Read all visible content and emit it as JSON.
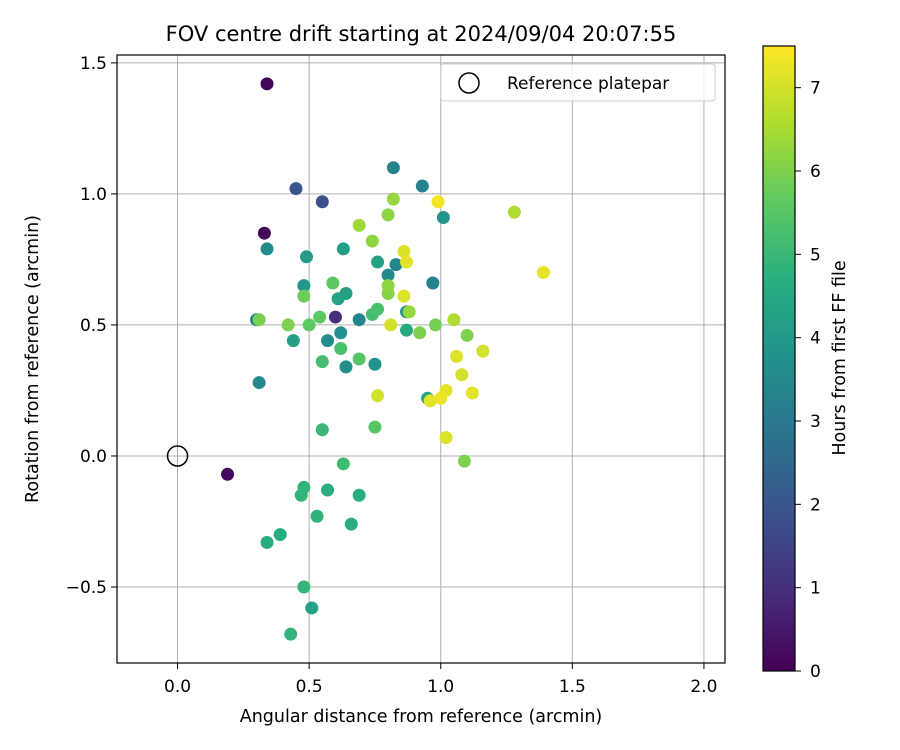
{
  "chart_data": {
    "type": "scatter",
    "title": "FOV centre drift starting at 2024/09/04 20:07:55",
    "xlabel": "Angular distance from reference (arcmin)",
    "ylabel": "Rotation from reference (arcmin)",
    "xlim": [
      -0.23,
      2.08
    ],
    "ylim": [
      -0.79,
      1.53
    ],
    "xticks": [
      0.0,
      0.5,
      1.0,
      1.5,
      2.0
    ],
    "xtick_labels": [
      "0.0",
      "0.5",
      "1.0",
      "1.5",
      "2.0"
    ],
    "yticks": [
      -0.5,
      0.0,
      0.5,
      1.0,
      1.5
    ],
    "ytick_labels": [
      "−0.5",
      "0.0",
      "0.5",
      "1.0",
      "1.5"
    ],
    "grid": true,
    "legend": {
      "position": "top-right",
      "entries": [
        "Reference platepar"
      ]
    },
    "reference_point": {
      "x": 0.0,
      "y": 0.0,
      "label": "Reference platepar"
    },
    "colorbar": {
      "label": "Hours from first FF file",
      "range": [
        0,
        7.5
      ],
      "ticks": [
        0,
        1,
        2,
        3,
        4,
        5,
        6,
        7
      ],
      "tick_labels": [
        "0",
        "1",
        "2",
        "3",
        "4",
        "5",
        "6",
        "7"
      ],
      "colormap": "viridis"
    },
    "points": [
      {
        "x": 0.34,
        "y": 1.42,
        "h": 0.1
      },
      {
        "x": 0.33,
        "y": 0.85,
        "h": 0.1
      },
      {
        "x": 0.19,
        "y": -0.07,
        "h": 0.2
      },
      {
        "x": 0.6,
        "y": 0.53,
        "h": 1.0
      },
      {
        "x": 0.45,
        "y": 1.02,
        "h": 1.9
      },
      {
        "x": 0.55,
        "y": 0.97,
        "h": 1.8
      },
      {
        "x": 0.82,
        "y": 1.1,
        "h": 3.3
      },
      {
        "x": 0.93,
        "y": 1.03,
        "h": 3.3
      },
      {
        "x": 0.34,
        "y": 0.79,
        "h": 3.6
      },
      {
        "x": 0.31,
        "y": 0.28,
        "h": 3.5
      },
      {
        "x": 0.3,
        "y": 0.52,
        "h": 3.4
      },
      {
        "x": 0.69,
        "y": 0.52,
        "h": 3.4
      },
      {
        "x": 0.97,
        "y": 0.66,
        "h": 3.3
      },
      {
        "x": 0.83,
        "y": 0.73,
        "h": 3.4
      },
      {
        "x": 0.8,
        "y": 0.69,
        "h": 3.5
      },
      {
        "x": 0.57,
        "y": 0.44,
        "h": 3.6
      },
      {
        "x": 0.62,
        "y": 0.47,
        "h": 3.7
      },
      {
        "x": 0.64,
        "y": 0.34,
        "h": 3.7
      },
      {
        "x": 0.75,
        "y": 0.35,
        "h": 3.8
      },
      {
        "x": 0.87,
        "y": 0.55,
        "h": 3.8
      },
      {
        "x": 1.01,
        "y": 0.91,
        "h": 3.9
      },
      {
        "x": 0.48,
        "y": 0.65,
        "h": 3.9
      },
      {
        "x": 0.49,
        "y": 0.76,
        "h": 4.1
      },
      {
        "x": 0.63,
        "y": 0.79,
        "h": 4.2
      },
      {
        "x": 0.76,
        "y": 0.74,
        "h": 4.3
      },
      {
        "x": 0.44,
        "y": 0.44,
        "h": 4.2
      },
      {
        "x": 0.64,
        "y": 0.62,
        "h": 4.2
      },
      {
        "x": 0.61,
        "y": 0.6,
        "h": 4.3
      },
      {
        "x": 0.87,
        "y": 0.48,
        "h": 4.5
      },
      {
        "x": 0.95,
        "y": 0.22,
        "h": 4.4
      },
      {
        "x": 0.51,
        "y": -0.58,
        "h": 4.3
      },
      {
        "x": 0.39,
        "y": -0.3,
        "h": 4.6
      },
      {
        "x": 0.34,
        "y": -0.33,
        "h": 4.6
      },
      {
        "x": 0.57,
        "y": -0.13,
        "h": 4.7
      },
      {
        "x": 0.69,
        "y": -0.15,
        "h": 4.7
      },
      {
        "x": 0.66,
        "y": -0.26,
        "h": 4.7
      },
      {
        "x": 0.53,
        "y": -0.23,
        "h": 4.8
      },
      {
        "x": 0.47,
        "y": -0.15,
        "h": 4.9
      },
      {
        "x": 0.48,
        "y": -0.12,
        "h": 4.9
      },
      {
        "x": 0.48,
        "y": -0.5,
        "h": 4.9
      },
      {
        "x": 0.43,
        "y": -0.68,
        "h": 4.9
      },
      {
        "x": 0.63,
        "y": -0.03,
        "h": 5.1
      },
      {
        "x": 0.55,
        "y": 0.1,
        "h": 5.0
      },
      {
        "x": 0.55,
        "y": 0.36,
        "h": 5.2
      },
      {
        "x": 0.62,
        "y": 0.41,
        "h": 5.3
      },
      {
        "x": 0.74,
        "y": 0.54,
        "h": 5.2
      },
      {
        "x": 0.76,
        "y": 0.56,
        "h": 5.3
      },
      {
        "x": 0.75,
        "y": 0.11,
        "h": 5.5
      },
      {
        "x": 0.69,
        "y": 0.37,
        "h": 5.5
      },
      {
        "x": 0.54,
        "y": 0.53,
        "h": 5.6
      },
      {
        "x": 0.5,
        "y": 0.5,
        "h": 5.6
      },
      {
        "x": 0.59,
        "y": 0.66,
        "h": 5.6
      },
      {
        "x": 0.48,
        "y": 0.61,
        "h": 5.8
      },
      {
        "x": 0.31,
        "y": 0.52,
        "h": 5.9
      },
      {
        "x": 0.42,
        "y": 0.5,
        "h": 6.0
      },
      {
        "x": 0.98,
        "y": 0.5,
        "h": 5.9
      },
      {
        "x": 0.92,
        "y": 0.47,
        "h": 6.0
      },
      {
        "x": 1.1,
        "y": 0.46,
        "h": 6.0
      },
      {
        "x": 1.09,
        "y": -0.02,
        "h": 6.0
      },
      {
        "x": 0.8,
        "y": 0.62,
        "h": 6.1
      },
      {
        "x": 0.8,
        "y": 0.65,
        "h": 6.2
      },
      {
        "x": 0.74,
        "y": 0.82,
        "h": 6.2
      },
      {
        "x": 0.8,
        "y": 0.92,
        "h": 6.2
      },
      {
        "x": 0.82,
        "y": 0.98,
        "h": 6.3
      },
      {
        "x": 0.69,
        "y": 0.88,
        "h": 6.4
      },
      {
        "x": 0.88,
        "y": 0.55,
        "h": 6.3
      },
      {
        "x": 1.05,
        "y": 0.52,
        "h": 6.6
      },
      {
        "x": 1.28,
        "y": 0.93,
        "h": 6.6
      },
      {
        "x": 0.81,
        "y": 0.5,
        "h": 7.0
      },
      {
        "x": 0.86,
        "y": 0.61,
        "h": 7.1
      },
      {
        "x": 0.86,
        "y": 0.78,
        "h": 7.1
      },
      {
        "x": 0.87,
        "y": 0.74,
        "h": 7.2
      },
      {
        "x": 0.76,
        "y": 0.23,
        "h": 7.0
      },
      {
        "x": 1.16,
        "y": 0.4,
        "h": 7.0
      },
      {
        "x": 1.06,
        "y": 0.38,
        "h": 7.1
      },
      {
        "x": 1.08,
        "y": 0.31,
        "h": 7.0
      },
      {
        "x": 1.02,
        "y": 0.25,
        "h": 7.2
      },
      {
        "x": 1.0,
        "y": 0.22,
        "h": 7.3
      },
      {
        "x": 1.12,
        "y": 0.24,
        "h": 7.2
      },
      {
        "x": 0.96,
        "y": 0.21,
        "h": 7.2
      },
      {
        "x": 1.02,
        "y": 0.07,
        "h": 7.1
      },
      {
        "x": 0.99,
        "y": 0.97,
        "h": 7.4
      },
      {
        "x": 1.39,
        "y": 0.7,
        "h": 7.2
      }
    ]
  }
}
